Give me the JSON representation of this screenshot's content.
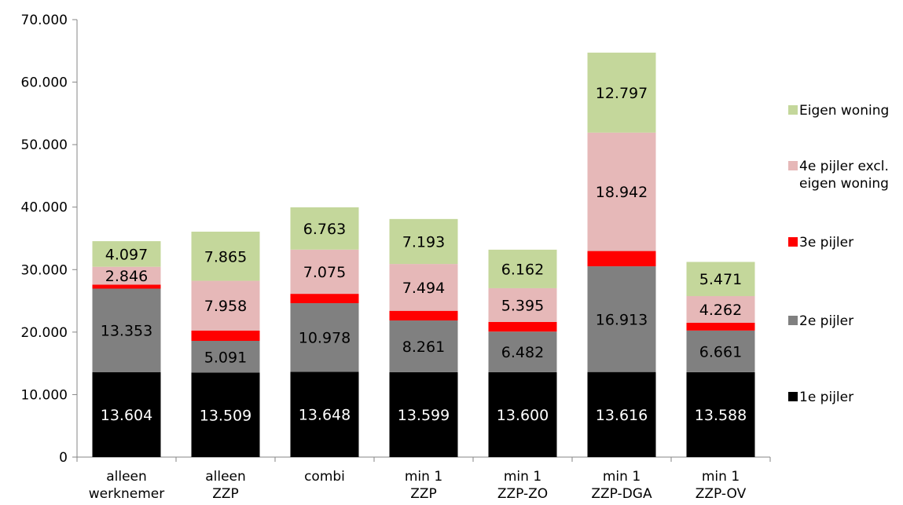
{
  "chart_data": {
    "type": "bar",
    "stacked": true,
    "categories": [
      [
        "alleen",
        "werknemer"
      ],
      [
        "alleen",
        "ZZP"
      ],
      [
        "combi"
      ],
      [
        "min 1",
        "ZZP"
      ],
      [
        "min 1",
        "ZZP-ZO"
      ],
      [
        "min 1",
        "ZZP-DGA"
      ],
      [
        "min 1",
        "ZZP-OV"
      ]
    ],
    "ylim": [
      0,
      70000
    ],
    "yticks": [
      0,
      10000,
      20000,
      30000,
      40000,
      50000,
      60000,
      70000
    ],
    "ytick_labels": [
      "0",
      "10.000",
      "20.000",
      "30.000",
      "40.000",
      "50.000",
      "60.000",
      "70.000"
    ],
    "legend_position": "right",
    "series": [
      {
        "name": "1e pijler",
        "color": "#000000",
        "label_color": "#ffffff",
        "values": [
          13604,
          13509,
          13648,
          13599,
          13600,
          13616,
          13588
        ],
        "labels": [
          "13.604",
          "13.509",
          "13.648",
          "13.599",
          "13.600",
          "13.616",
          "13.588"
        ]
      },
      {
        "name": "2e pijler",
        "color": "#808080",
        "label_color": "#000000",
        "values": [
          13353,
          5091,
          10978,
          8261,
          6482,
          16913,
          6661
        ],
        "labels": [
          "13.353",
          "5.091",
          "10.978",
          "8.261",
          "6.482",
          "16.913",
          "6.661"
        ]
      },
      {
        "name": "3e pijler",
        "color": "#ff0000",
        "label_color": "#000000",
        "values": [
          650,
          1650,
          1500,
          1550,
          1550,
          2450,
          1250
        ],
        "labels": [
          "",
          "",
          "",
          "",
          "",
          "",
          ""
        ]
      },
      {
        "name": "4e pijler excl.\neigen woning",
        "color": "#e6b8b8",
        "label_color": "#000000",
        "values": [
          2846,
          7958,
          7075,
          7494,
          5395,
          18942,
          4262
        ],
        "labels": [
          "2.846",
          "7.958",
          "7.075",
          "7.494",
          "5.395",
          "18.942",
          "4.262"
        ]
      },
      {
        "name": "Eigen woning",
        "color": "#c4d79b",
        "label_color": "#000000",
        "values": [
          4097,
          7865,
          6763,
          7193,
          6162,
          12797,
          5471
        ],
        "labels": [
          "4.097",
          "7.865",
          "6.763",
          "7.193",
          "6.162",
          "12.797",
          "5.471"
        ]
      }
    ]
  }
}
